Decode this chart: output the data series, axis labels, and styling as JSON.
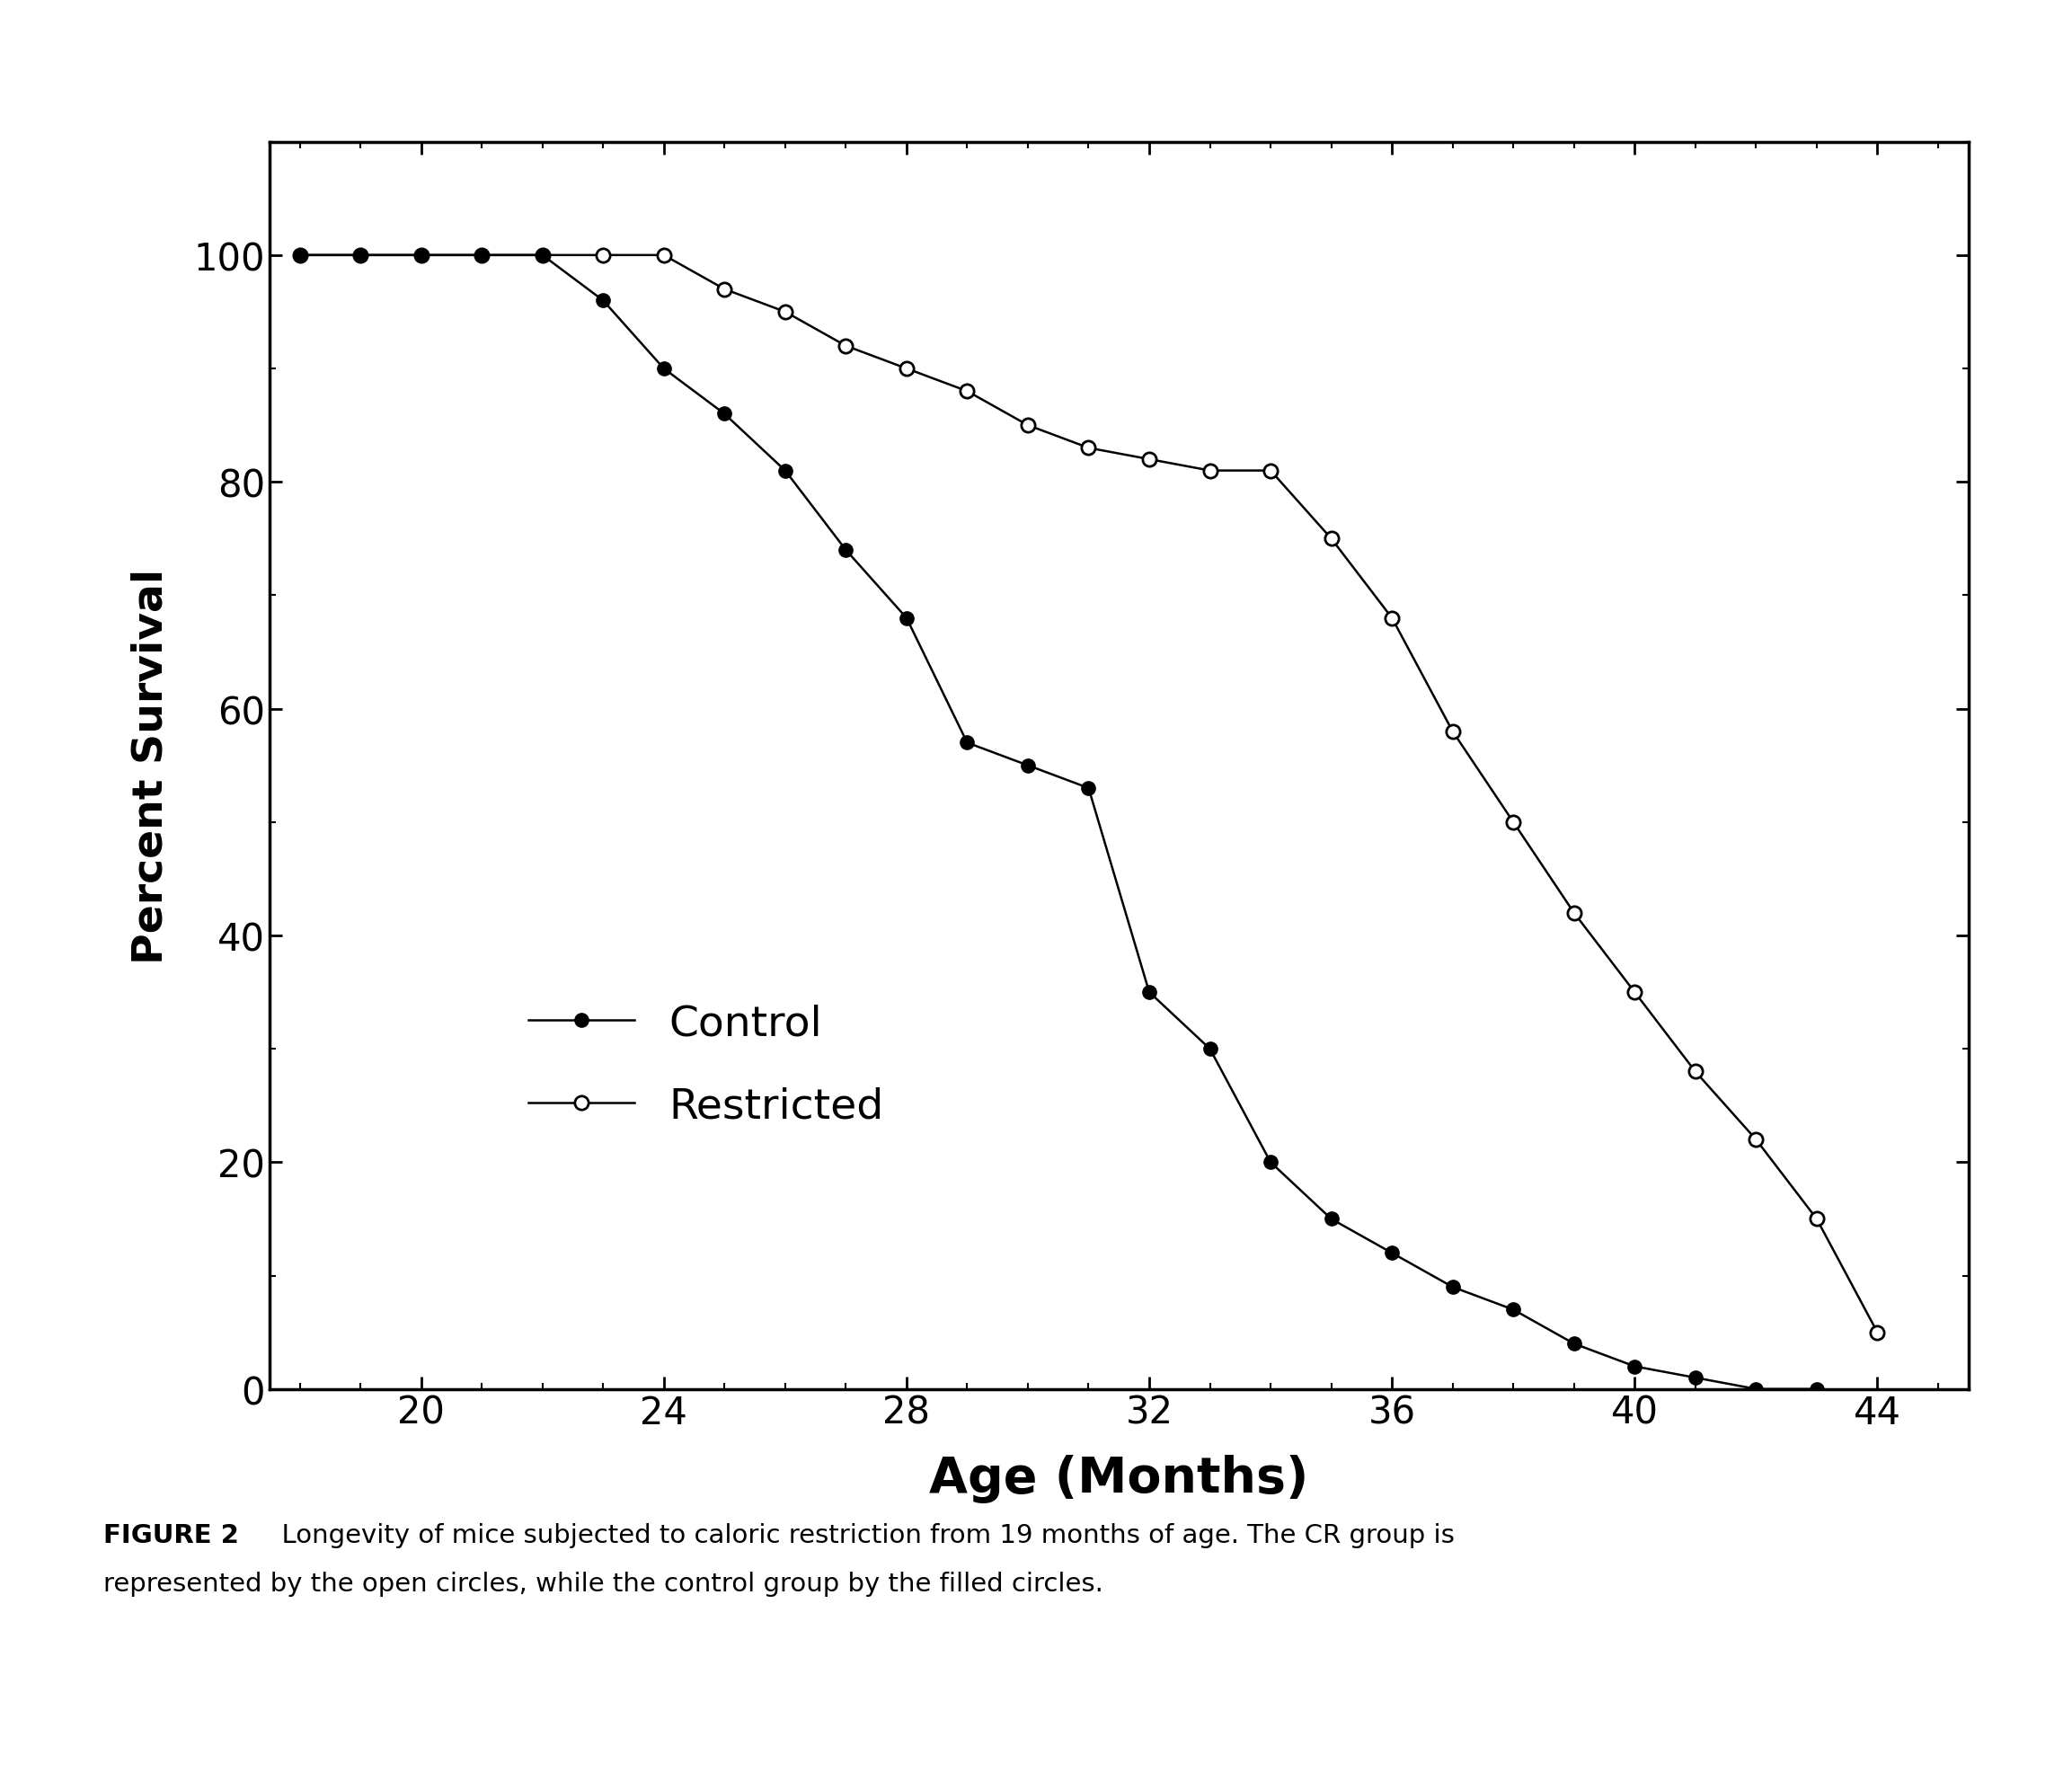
{
  "control_x": [
    18,
    19,
    20,
    21,
    22,
    23,
    24,
    25,
    26,
    27,
    28,
    29,
    30,
    31,
    32,
    33,
    34,
    35,
    36,
    37,
    38,
    39,
    40,
    41,
    42,
    43
  ],
  "control_y": [
    100,
    100,
    100,
    100,
    100,
    96,
    90,
    86,
    81,
    74,
    68,
    57,
    55,
    53,
    35,
    30,
    20,
    15,
    12,
    9,
    7,
    4,
    2,
    1,
    0,
    0
  ],
  "restricted_x": [
    18,
    19,
    20,
    21,
    22,
    23,
    24,
    25,
    26,
    27,
    28,
    29,
    30,
    31,
    32,
    33,
    34,
    35,
    36,
    37,
    38,
    39,
    40,
    41,
    42,
    43,
    44
  ],
  "restricted_y": [
    100,
    100,
    100,
    100,
    100,
    100,
    100,
    97,
    95,
    92,
    90,
    88,
    85,
    83,
    82,
    81,
    81,
    75,
    68,
    58,
    50,
    42,
    35,
    28,
    22,
    15,
    5
  ],
  "xlabel": "Age (Months)",
  "ylabel": "Percent Survival",
  "xlim": [
    17.5,
    45.5
  ],
  "ylim": [
    0,
    110
  ],
  "xticks": [
    20,
    24,
    28,
    32,
    36,
    40,
    44
  ],
  "yticks": [
    0,
    20,
    40,
    60,
    80,
    100
  ],
  "legend_control": "Control",
  "legend_restricted": "Restricted",
  "caption_bold": "FIGURE 2",
  "caption_normal": "  Longevity of mice subjected to caloric restriction from 19 months of age. The CR group is",
  "caption_line2": "represented by the open circles, while the control group by the filled circles.",
  "background_color": "#ffffff",
  "line_color": "#000000",
  "marker_size": 11,
  "line_width": 1.8
}
